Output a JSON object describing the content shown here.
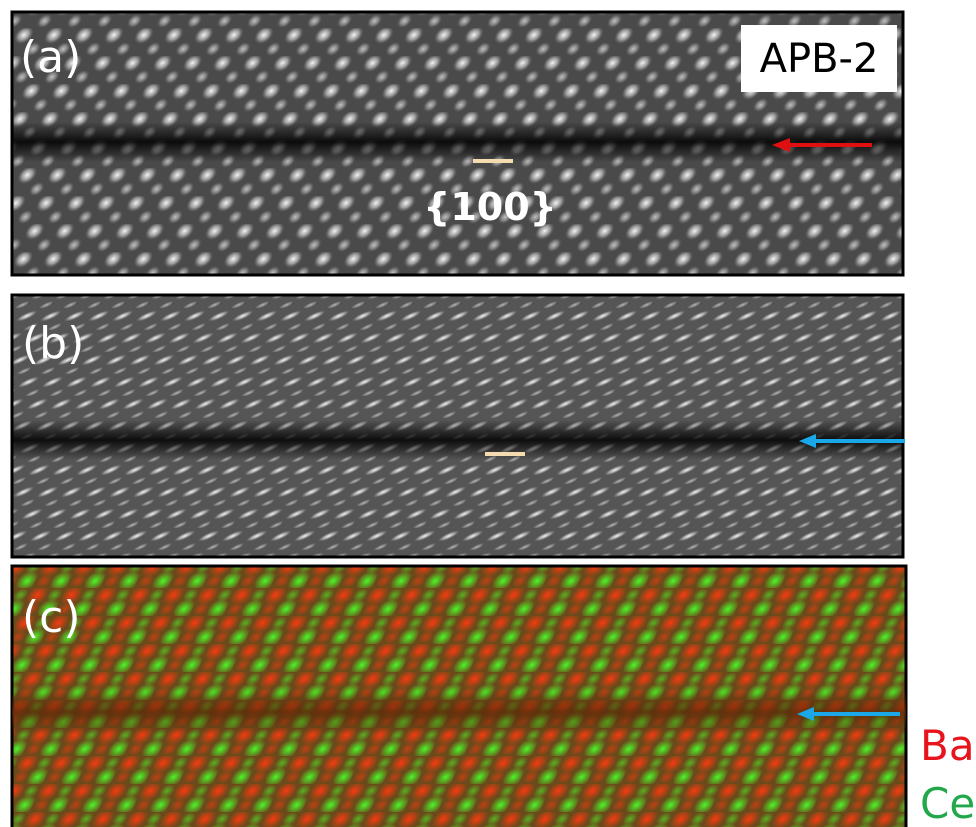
{
  "panels": [
    {
      "label": "(a)",
      "tag": "APB-2",
      "annotation": "{100}"
    },
    {
      "label": "(b)"
    },
    {
      "label": "(c)"
    }
  ],
  "legend": [
    "Ba",
    "Ce"
  ]
}
